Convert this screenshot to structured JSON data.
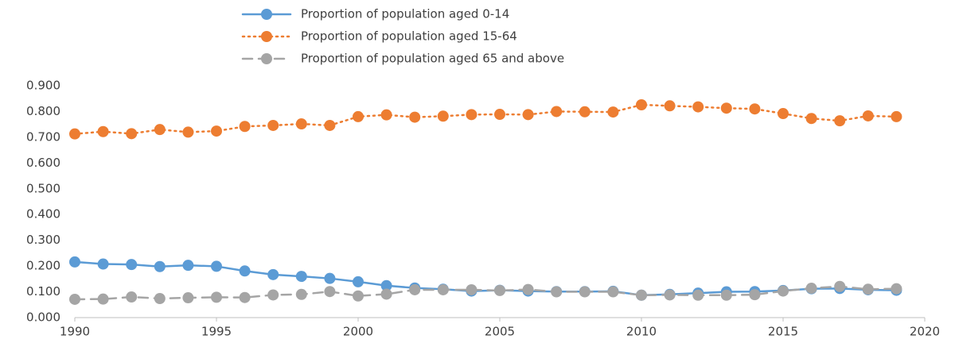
{
  "chart_data": {
    "type": "line",
    "x": [
      1990,
      1991,
      1992,
      1993,
      1994,
      1995,
      1996,
      1997,
      1998,
      1999,
      2000,
      2001,
      2002,
      2003,
      2004,
      2005,
      2006,
      2007,
      2008,
      2009,
      2010,
      2011,
      2012,
      2013,
      2014,
      2015,
      2016,
      2017,
      2018,
      2019
    ],
    "series": [
      {
        "name": "Proportion of population aged 0-14",
        "color": "#5b9bd5",
        "dash": "solid",
        "values": [
          0.216,
          0.208,
          0.206,
          0.198,
          0.203,
          0.199,
          0.181,
          0.167,
          0.16,
          0.152,
          0.139,
          0.124,
          0.115,
          0.11,
          0.103,
          0.106,
          0.103,
          0.101,
          0.101,
          0.102,
          0.087,
          0.09,
          0.095,
          0.1,
          0.101,
          0.105,
          0.112,
          0.113,
          0.108,
          0.106
        ]
      },
      {
        "name": "Proportion of population aged 15-64",
        "color": "#ed7d31",
        "dash": "dot",
        "values": [
          0.713,
          0.722,
          0.714,
          0.73,
          0.72,
          0.724,
          0.742,
          0.746,
          0.752,
          0.746,
          0.78,
          0.787,
          0.778,
          0.782,
          0.788,
          0.789,
          0.788,
          0.8,
          0.799,
          0.798,
          0.826,
          0.822,
          0.818,
          0.813,
          0.81,
          0.792,
          0.773,
          0.764,
          0.783,
          0.78
        ]
      },
      {
        "name": "Proportion of population aged 65 and above",
        "color": "#a5a5a5",
        "dash": "dash",
        "values": [
          0.071,
          0.072,
          0.08,
          0.074,
          0.077,
          0.079,
          0.078,
          0.088,
          0.09,
          0.101,
          0.084,
          0.091,
          0.108,
          0.108,
          0.108,
          0.105,
          0.109,
          0.1,
          0.1,
          0.1,
          0.087,
          0.088,
          0.087,
          0.087,
          0.089,
          0.103,
          0.114,
          0.121,
          0.11,
          0.112
        ]
      }
    ],
    "xlim": [
      1990,
      2020
    ],
    "xticks": [
      1990,
      1995,
      2000,
      2005,
      2010,
      2015,
      2020
    ],
    "ylim": [
      0,
      0.9
    ],
    "yticks": [
      {
        "value": 0,
        "label": "0.000"
      },
      {
        "value": 0.1,
        "label": "0.100"
      },
      {
        "value": 0.2,
        "label": "0.200"
      },
      {
        "value": 0.3,
        "label": "0.300"
      },
      {
        "value": 0.4,
        "label": "0.400"
      },
      {
        "value": 0.5,
        "label": "0.500"
      },
      {
        "value": 0.6,
        "label": "0.600"
      },
      {
        "value": 0.7,
        "label": "0.700"
      },
      {
        "value": 0.8,
        "label": "0.800"
      },
      {
        "value": 0.9,
        "label": "0.900"
      }
    ],
    "grid": false,
    "legend": "top"
  }
}
